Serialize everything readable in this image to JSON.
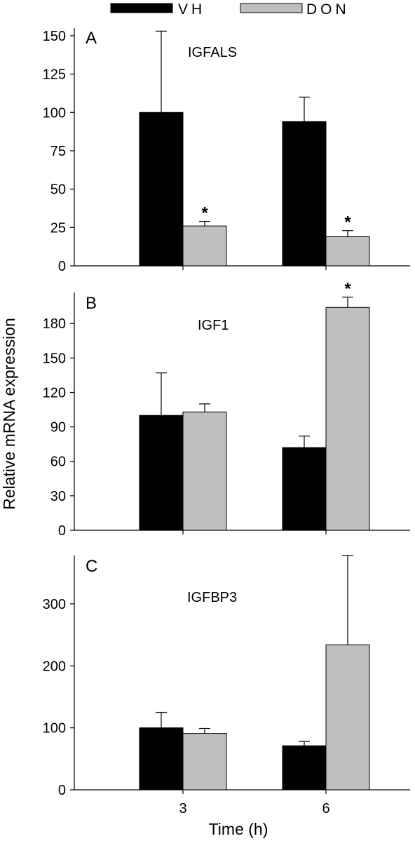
{
  "colors": {
    "VH": "#000000",
    "DON": "#bfbfbf",
    "edge": "#000000"
  },
  "chart_data": [
    {
      "type": "bar",
      "panel": "A",
      "gene": "IGFALS",
      "categories": [
        "3",
        "6"
      ],
      "series": [
        {
          "name": "VH",
          "values": [
            100,
            94
          ],
          "errors": [
            53,
            16
          ]
        },
        {
          "name": "DON",
          "values": [
            26,
            19
          ],
          "errors": [
            3,
            4
          ]
        }
      ],
      "significance": [
        {
          "series": "DON",
          "category": "3",
          "label": "*"
        },
        {
          "series": "DON",
          "category": "6",
          "label": "*"
        }
      ],
      "yticks": [
        0,
        25,
        50,
        75,
        100,
        125,
        150
      ],
      "ylim": [
        0,
        155
      ]
    },
    {
      "type": "bar",
      "panel": "B",
      "gene": "IGF1",
      "categories": [
        "3",
        "6"
      ],
      "series": [
        {
          "name": "VH",
          "values": [
            100,
            72
          ],
          "errors": [
            37,
            10
          ]
        },
        {
          "name": "DON",
          "values": [
            103,
            194
          ],
          "errors": [
            7,
            9
          ]
        }
      ],
      "significance": [
        {
          "series": "DON",
          "category": "6",
          "label": "*"
        }
      ],
      "yticks": [
        0,
        30,
        60,
        90,
        120,
        150,
        180
      ],
      "ylim": [
        0,
        207
      ]
    },
    {
      "type": "bar",
      "panel": "C",
      "gene": "IGFBP3",
      "categories": [
        "3",
        "6"
      ],
      "series": [
        {
          "name": "VH",
          "values": [
            100,
            71
          ],
          "errors": [
            25,
            7
          ]
        },
        {
          "name": "DON",
          "values": [
            91,
            234
          ],
          "errors": [
            8,
            144
          ]
        }
      ],
      "significance": [],
      "yticks": [
        0,
        100,
        200,
        300
      ],
      "ylim": [
        0,
        378
      ]
    }
  ],
  "legend": {
    "items": [
      "VH",
      "DON"
    ]
  },
  "ylabel": "Relative mRNA expression",
  "xlabel": "Time (h)",
  "xticks": [
    "3",
    "6"
  ]
}
